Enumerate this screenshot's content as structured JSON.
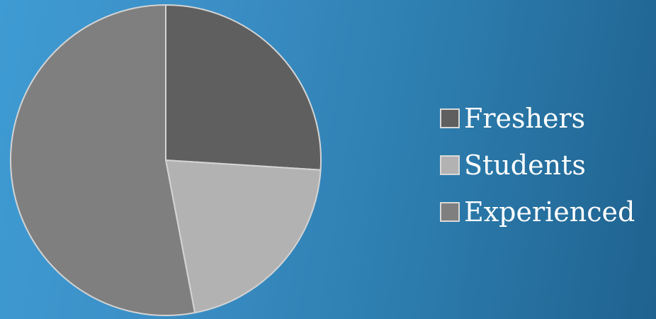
{
  "chart_data": {
    "type": "pie",
    "title": "",
    "slices": [
      {
        "label": "Freshers",
        "value": 26,
        "color": "#5f5f5f"
      },
      {
        "label": "Students",
        "value": 21,
        "color": "#b2b2b2"
      },
      {
        "label": "Experienced",
        "value": 53,
        "color": "#7f7f7f"
      }
    ],
    "legend_position": "right"
  }
}
